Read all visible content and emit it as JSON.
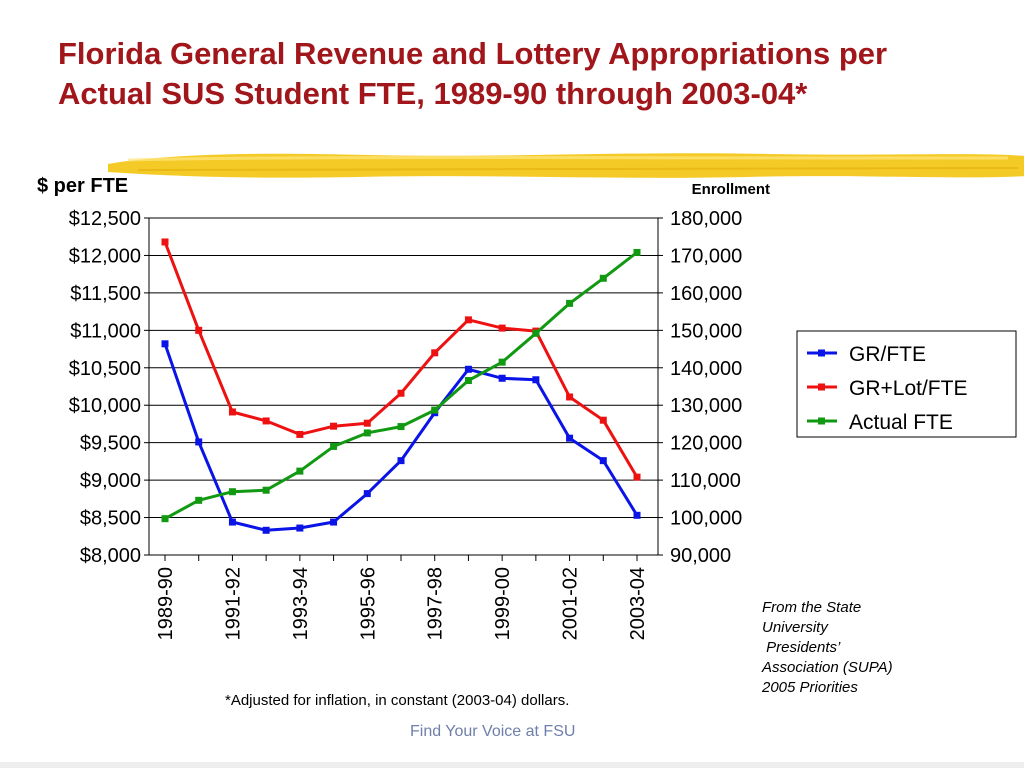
{
  "slide": {
    "title_line1": "Florida General Revenue and Lottery Appropriations per",
    "title_line2": "Actual SUS Student FTE, 1989-90 through 2003-04*",
    "footnote": "*Adjusted for inflation, in constant (2003-04) dollars.",
    "source_lines": [
      "From the State",
      "University",
      " Presidents’",
      "Association (SUPA)",
      "2005 Priorities"
    ],
    "tagline": "Find Your Voice at FSU",
    "colors": {
      "title": "#a0161a",
      "highlight": "#f2c200",
      "tagline": "#6f7faa"
    }
  },
  "chart_data": {
    "type": "line",
    "left_axis_title": "$ per FTE",
    "right_axis_title": "Enrollment",
    "categories": [
      "1989-90",
      "1990-91",
      "1991-92",
      "1992-93",
      "1993-94",
      "1994-95",
      "1995-96",
      "1996-97",
      "1997-98",
      "1998-99",
      "1999-00",
      "2000-01",
      "2001-02",
      "2002-03",
      "2003-04"
    ],
    "x_tick_labels": [
      "1989-90",
      "1991-92",
      "1993-94",
      "1995-96",
      "1997-98",
      "1999-00",
      "2001-02",
      "2003-04"
    ],
    "y_left": {
      "min": 8000,
      "max": 12500,
      "step": 500,
      "ticks": [
        "$8,000",
        "$8,500",
        "$9,000",
        "$9,500",
        "$10,000",
        "$10,500",
        "$11,000",
        "$11,500",
        "$12,000",
        "$12,500"
      ]
    },
    "y_right": {
      "min": 90000,
      "max": 180000,
      "step": 10000,
      "ticks": [
        "90,000",
        "100,000",
        "110,000",
        "120,000",
        "130,000",
        "140,000",
        "150,000",
        "160,000",
        "170,000",
        "180,000"
      ]
    },
    "grid": true,
    "legend_position": "right",
    "series": [
      {
        "name": "GR/FTE",
        "axis": "left",
        "color": "#0a14e6",
        "values": [
          10820,
          9510,
          8440,
          8330,
          8360,
          8440,
          8820,
          9260,
          9900,
          10480,
          10360,
          10340,
          9560,
          9260,
          8530
        ]
      },
      {
        "name": "GR+Lot/FTE",
        "axis": "left",
        "color": "#ee1111",
        "values": [
          12180,
          11000,
          9910,
          9790,
          9610,
          9720,
          9760,
          10160,
          10700,
          11140,
          11030,
          10990,
          10110,
          9800,
          9040
        ]
      },
      {
        "name": "Actual FTE",
        "axis": "right",
        "color": "#119911",
        "values": [
          99700,
          104600,
          106900,
          107300,
          112400,
          119000,
          122600,
          124300,
          128700,
          136600,
          141500,
          149200,
          157200,
          163900,
          170800
        ]
      }
    ]
  }
}
